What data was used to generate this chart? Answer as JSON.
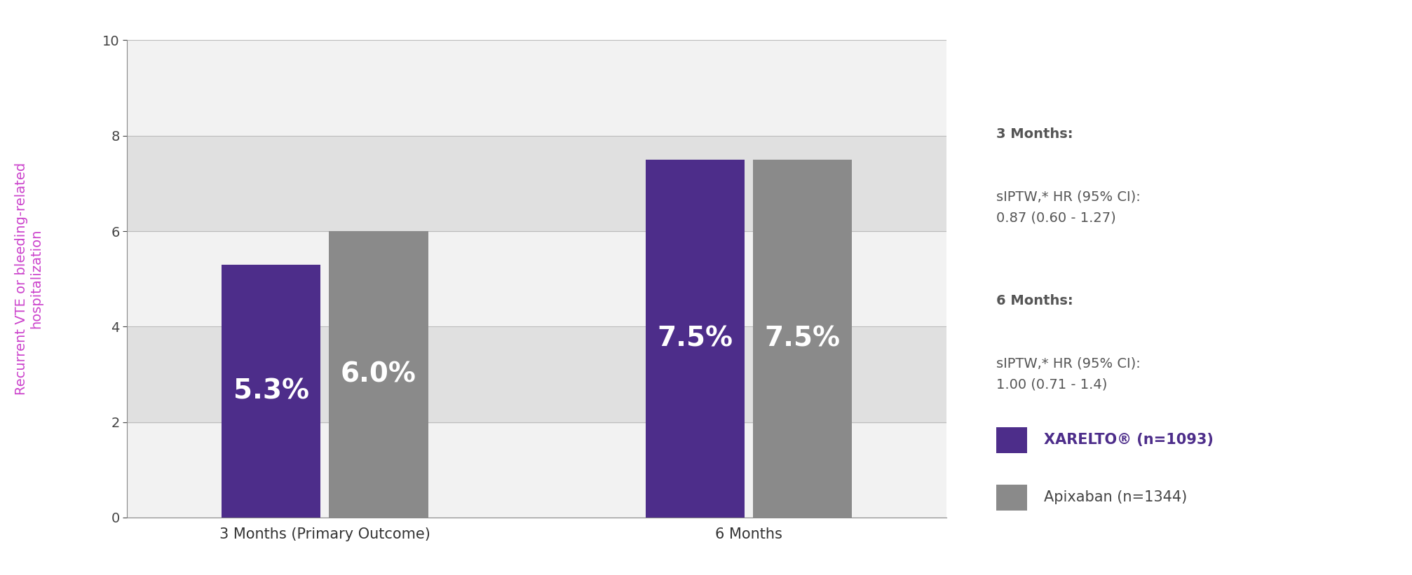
{
  "categories": [
    "3 Months (Primary Outcome)",
    "6 Months"
  ],
  "xarelto_values": [
    5.3,
    7.5
  ],
  "apixaban_values": [
    6.0,
    7.5
  ],
  "xarelto_color": "#4d2d8a",
  "apixaban_color": "#8a8a8a",
  "bar_label_color": "#ffffff",
  "bar_label_fontsize": 28,
  "ylim": [
    0,
    10
  ],
  "yticks": [
    0,
    2,
    4,
    6,
    8,
    10
  ],
  "ylabel_line1": "Recurrent VTE or bleeding-related",
  "ylabel_line2": "hospitalization",
  "ylabel_color": "#cc44cc",
  "ylabel_fontsize": 14,
  "background_color": "#ffffff",
  "plot_bg_light": "#f0f0f0",
  "plot_bg_dark": "#d0d0d0",
  "annotation_3months_title": "3 Months:",
  "annotation_3months_body": "sIPTW,* HR (95% CI):\n0.87 (0.60 - 1.27)",
  "annotation_6months_title": "6 Months:",
  "annotation_6months_body": "sIPTW,* HR (95% CI):\n1.00 (0.71 - 1.4)",
  "annotation_color": "#555555",
  "annotation_fontsize": 14,
  "legend_xarelto": "XARELTO® (n=1093)",
  "legend_apixaban": "Apixaban (n=1344)",
  "legend_fontsize": 15,
  "legend_color_xarelto": "#4d2d8a",
  "legend_color_apixaban": "#8a8a8a",
  "bar_width": 0.35,
  "x_positions": [
    1.0,
    2.5
  ],
  "grid_color": "#cccccc",
  "tick_fontsize": 14,
  "band_colors": [
    "#f2f2f2",
    "#e0e0e0"
  ]
}
